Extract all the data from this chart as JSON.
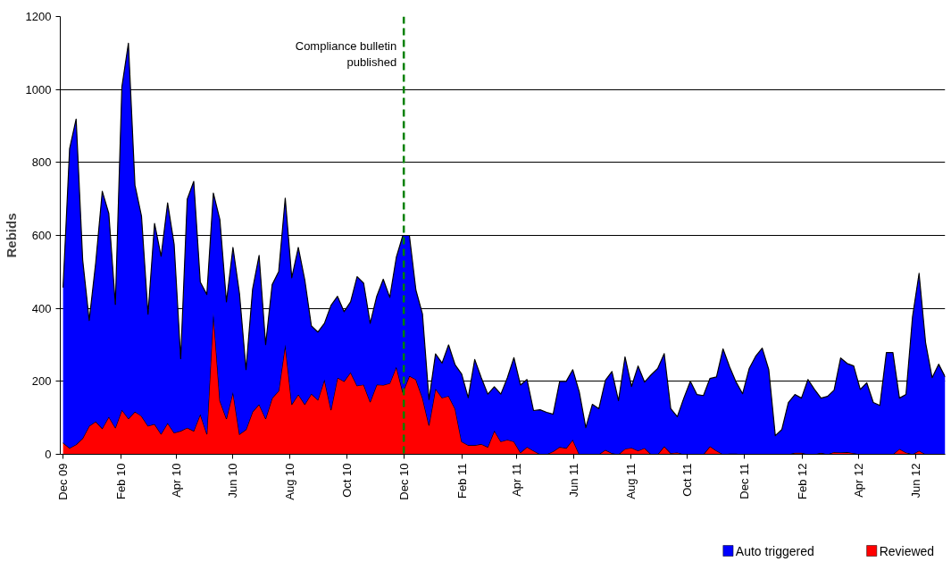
{
  "chart_data": {
    "type": "area",
    "stacked": true,
    "ylabel": "Rebids",
    "x": [
      "2009-12-01",
      "2009-12-08",
      "2009-12-15",
      "2009-12-22",
      "2009-12-29",
      "2010-01-05",
      "2010-01-12",
      "2010-01-19",
      "2010-01-26",
      "2010-02-02",
      "2010-02-09",
      "2010-02-16",
      "2010-02-23",
      "2010-03-02",
      "2010-03-09",
      "2010-03-16",
      "2010-03-23",
      "2010-03-30",
      "2010-04-06",
      "2010-04-13",
      "2010-04-20",
      "2010-04-27",
      "2010-05-04",
      "2010-05-11",
      "2010-05-18",
      "2010-05-25",
      "2010-06-01",
      "2010-06-08",
      "2010-06-15",
      "2010-06-22",
      "2010-06-29",
      "2010-07-06",
      "2010-07-13",
      "2010-07-20",
      "2010-07-27",
      "2010-08-03",
      "2010-08-10",
      "2010-08-17",
      "2010-08-24",
      "2010-08-31",
      "2010-09-07",
      "2010-09-14",
      "2010-09-21",
      "2010-09-28",
      "2010-10-05",
      "2010-10-12",
      "2010-10-19",
      "2010-10-26",
      "2010-11-02",
      "2010-11-09",
      "2010-11-16",
      "2010-11-23",
      "2010-11-30",
      "2010-12-07",
      "2010-12-14",
      "2010-12-21",
      "2010-12-28",
      "2011-01-04",
      "2011-01-11",
      "2011-01-18",
      "2011-01-25",
      "2011-02-01",
      "2011-02-08",
      "2011-02-15",
      "2011-02-22",
      "2011-03-01",
      "2011-03-08",
      "2011-03-15",
      "2011-03-22",
      "2011-03-29",
      "2011-04-05",
      "2011-04-12",
      "2011-04-19",
      "2011-04-26",
      "2011-05-03",
      "2011-05-10",
      "2011-05-17",
      "2011-05-24",
      "2011-05-31",
      "2011-06-07",
      "2011-06-14",
      "2011-06-21",
      "2011-06-28",
      "2011-07-05",
      "2011-07-12",
      "2011-07-19",
      "2011-07-26",
      "2011-08-02",
      "2011-08-09",
      "2011-08-16",
      "2011-08-23",
      "2011-08-30",
      "2011-09-06",
      "2011-09-13",
      "2011-09-20",
      "2011-09-27",
      "2011-10-04",
      "2011-10-11",
      "2011-10-18",
      "2011-10-25",
      "2011-11-01",
      "2011-11-08",
      "2011-11-15",
      "2011-11-22",
      "2011-11-29",
      "2011-12-06",
      "2011-12-13",
      "2011-12-20",
      "2011-12-27",
      "2012-01-03",
      "2012-01-10",
      "2012-01-17",
      "2012-01-24",
      "2012-01-31",
      "2012-02-07",
      "2012-02-14",
      "2012-02-21",
      "2012-02-28",
      "2012-03-06",
      "2012-03-13",
      "2012-03-20",
      "2012-03-27",
      "2012-04-03",
      "2012-04-10",
      "2012-04-17",
      "2012-04-24",
      "2012-05-01",
      "2012-05-08",
      "2012-05-15",
      "2012-05-22",
      "2012-05-29",
      "2012-06-05",
      "2012-06-12",
      "2012-06-19",
      "2012-06-26",
      "2012-07-03"
    ],
    "series": [
      {
        "name": "Reviewed",
        "color": "#ff0000",
        "values": [
          32,
          17,
          27,
          44,
          78,
          90,
          71,
          103,
          73,
          122,
          98,
          117,
          105,
          78,
          83,
          56,
          86,
          59,
          64,
          73,
          64,
          110,
          56,
          389,
          147,
          98,
          171,
          55,
          68,
          117,
          137,
          98,
          154,
          174,
          301,
          137,
          164,
          137,
          166,
          149,
          205,
          122,
          210,
          200,
          225,
          188,
          191,
          144,
          191,
          190,
          195,
          240,
          170,
          215,
          205,
          155,
          80,
          180,
          155,
          160,
          125,
          35,
          25,
          25,
          28,
          20,
          65,
          35,
          40,
          35,
          5,
          20,
          10,
          0,
          0,
          8,
          20,
          17,
          40,
          0,
          0,
          0,
          0,
          12,
          3,
          0,
          15,
          18,
          10,
          17,
          0,
          0,
          22,
          3,
          5,
          0,
          0,
          0,
          0,
          22,
          10,
          0,
          2,
          2,
          0,
          0,
          0,
          0,
          0,
          0,
          0,
          0,
          4,
          4,
          0,
          0,
          4,
          0,
          6,
          5,
          6,
          3,
          0,
          0,
          0,
          0,
          0,
          0,
          15,
          5,
          0,
          10,
          0,
          0,
          0,
          0
        ]
      },
      {
        "name": "Auto triggered",
        "color": "#0000ff",
        "values": [
          425,
          821,
          892,
          489,
          289,
          436,
          650,
          557,
          338,
          885,
          1029,
          621,
          548,
          306,
          550,
          487,
          603,
          516,
          198,
          626,
          684,
          362,
          382,
          327,
          496,
          320,
          396,
          385,
          164,
          335,
          408,
          203,
          311,
          327,
          401,
          347,
          403,
          340,
          186,
          186,
          154,
          286,
          223,
          191,
          193,
          299,
          278,
          215,
          242,
          290,
          235,
          300,
          430,
          385,
          245,
          230,
          70,
          95,
          95,
          140,
          120,
          185,
          130,
          235,
          182,
          145,
          120,
          130,
          170,
          230,
          185,
          185,
          110,
          122,
          115,
          102,
          180,
          183,
          192,
          171,
          73,
          137,
          125,
          191,
          224,
          147,
          252,
          168,
          232,
          181,
          218,
          235,
          254,
          122,
          98,
          154,
          200,
          164,
          161,
          186,
          202,
          289,
          238,
          196,
          166,
          235,
          269,
          291,
          232,
          51,
          68,
          142,
          160,
          150,
          205,
          178,
          150,
          159,
          170,
          259,
          243,
          239,
          178,
          196,
          142,
          134,
          279,
          279,
          139,
          159,
          377,
          486,
          306,
          210,
          247,
          212
        ]
      }
    ],
    "xlim": [
      "2009-11-28",
      "2012-07-03"
    ],
    "xticks": [
      {
        "value": "2009-12-01",
        "label": "Dec 09"
      },
      {
        "value": "2010-02-01",
        "label": "Feb 10"
      },
      {
        "value": "2010-04-01",
        "label": "Apr 10"
      },
      {
        "value": "2010-06-01",
        "label": "Jun 10"
      },
      {
        "value": "2010-08-01",
        "label": "Aug 10"
      },
      {
        "value": "2010-10-01",
        "label": "Oct 10"
      },
      {
        "value": "2010-12-01",
        "label": "Dec 10"
      },
      {
        "value": "2011-02-01",
        "label": "Feb 11"
      },
      {
        "value": "2011-04-01",
        "label": "Apr 11"
      },
      {
        "value": "2011-06-01",
        "label": "Jun 11"
      },
      {
        "value": "2011-08-01",
        "label": "Aug 11"
      },
      {
        "value": "2011-10-01",
        "label": "Oct 11"
      },
      {
        "value": "2011-12-01",
        "label": "Dec 11"
      },
      {
        "value": "2012-02-01",
        "label": "Feb 12"
      },
      {
        "value": "2012-04-01",
        "label": "Apr 12"
      },
      {
        "value": "2012-06-01",
        "label": "Jun 12"
      }
    ],
    "ylim": [
      0,
      1200
    ],
    "yticks": [
      0,
      200,
      400,
      600,
      800,
      1000,
      1200
    ],
    "grid": "y",
    "legend": "bottom right",
    "ref_lines": [
      {
        "axis": "x",
        "value": "2010-12-01",
        "label": "Compliance bulletin published",
        "color": "#008000",
        "line_style": "dashed"
      }
    ]
  }
}
